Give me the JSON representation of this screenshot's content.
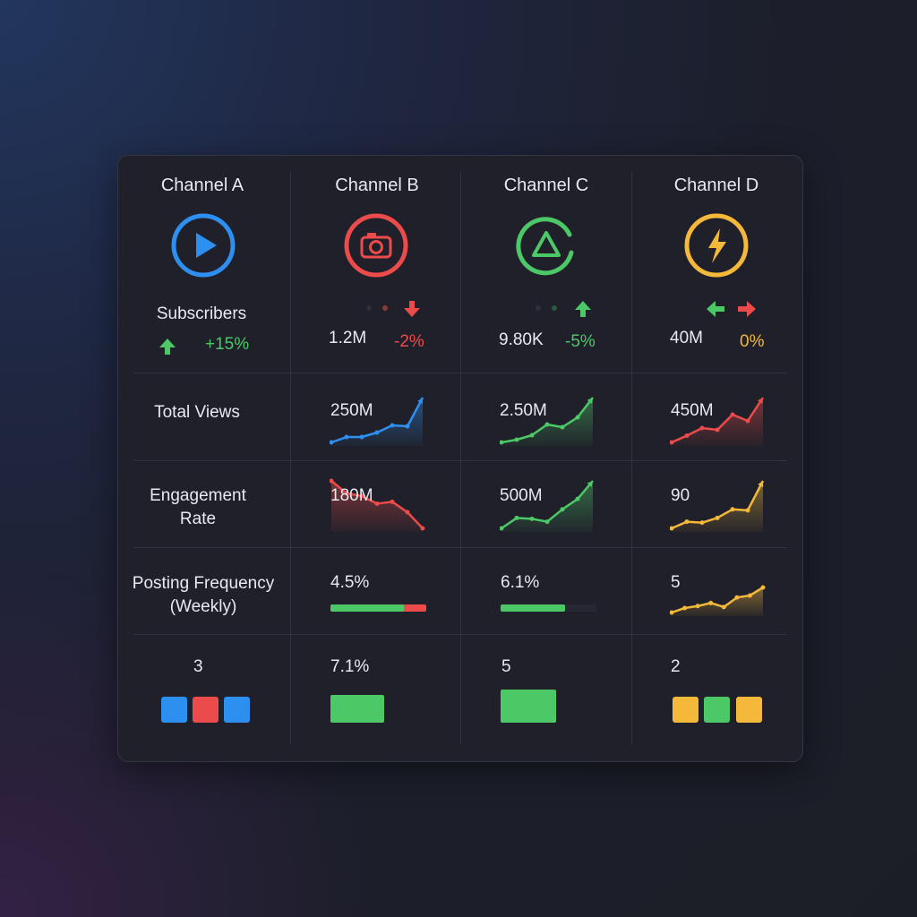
{
  "colors": {
    "blue": "#2d8ff0",
    "red": "#ec4b4b",
    "green": "#4cc867",
    "amber": "#f4b83a"
  },
  "channels": [
    {
      "name": "Channel A",
      "icon": "play-icon",
      "color": "#2d8ff0"
    },
    {
      "name": "Channel B",
      "icon": "camera-icon",
      "color": "#ec4b4b"
    },
    {
      "name": "Channel C",
      "icon": "triangle-icon",
      "color": "#4cc867"
    },
    {
      "name": "Channel D",
      "icon": "lightning-icon",
      "color": "#f4b83a"
    }
  ],
  "metrics": {
    "subscribers": "Subscribers",
    "total_views": "Total Views",
    "engagement_rate_1": "Engagement",
    "engagement_rate_2": "Rate",
    "posting_frequency_1": "Posting Frequency",
    "posting_frequency_2": "(Weekly)"
  },
  "subscribers": {
    "a_change": "+15%",
    "b_value": "1.2M",
    "b_change": "-2%",
    "c_value": "9.80K",
    "c_change": "-5%",
    "d_value": "40M",
    "d_change": "0%"
  },
  "total_views": {
    "b_value": "250M",
    "c_value": "2.50M",
    "d_value": "450M",
    "b_trend": [
      0,
      0.12,
      0.12,
      0.22,
      0.38,
      0.36,
      1
    ],
    "c_trend": [
      0,
      0.06,
      0.16,
      0.4,
      0.34,
      0.56,
      1
    ],
    "d_trend": [
      0,
      0.15,
      0.32,
      0.28,
      0.62,
      0.48,
      1
    ]
  },
  "engagement": {
    "b_value": "180M",
    "c_value": "500M",
    "d_value": "90",
    "b_trend": [
      1,
      0.74,
      0.68,
      0.52,
      0.56,
      0.34,
      0
    ],
    "c_trend": [
      0,
      0.22,
      0.2,
      0.14,
      0.4,
      0.62,
      1
    ],
    "d_trend": [
      0,
      0.14,
      0.12,
      0.22,
      0.4,
      0.38,
      1
    ]
  },
  "posting": {
    "b_value": "4.5%",
    "b_bar_green": 0.77,
    "c_value": "6.1%",
    "c_bar_fill": 0.67,
    "d_value": "5",
    "d_trend": [
      0,
      0.18,
      0.26,
      0.38,
      0.22,
      0.6,
      0.68,
      1
    ]
  },
  "last_row": {
    "a_value": "3",
    "b_value": "7.1%",
    "c_value": "5",
    "d_value": "2"
  }
}
